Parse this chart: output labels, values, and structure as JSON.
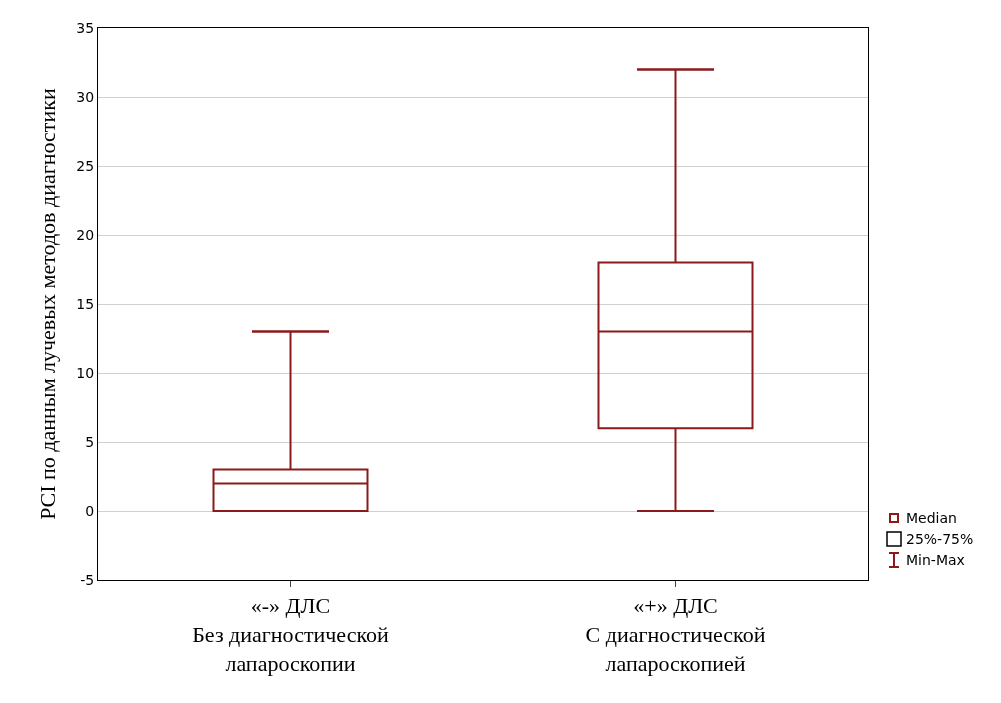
{
  "chart_data": {
    "type": "box",
    "ylabel": "PCI по данным лучевых методов диагностики",
    "categories": [
      "«-» ДЛС\nБез диагностической\nлапароскопии",
      "«+» ДЛС\nС диагностической\nлапароскопией"
    ],
    "boxes": [
      {
        "low": 0,
        "q1": 0,
        "median": 2,
        "q3": 3,
        "high": 13
      },
      {
        "low": 0,
        "q1": 6,
        "median": 13,
        "q3": 18,
        "high": 32
      }
    ],
    "color": "#8b1a1a",
    "ylim": [
      -5,
      35
    ],
    "yticks": [
      -5,
      0,
      5,
      10,
      15,
      20,
      25,
      30,
      35
    ],
    "grid": "y",
    "annotations": [
      "Median",
      "25%-75%",
      "Min-Max"
    ]
  }
}
